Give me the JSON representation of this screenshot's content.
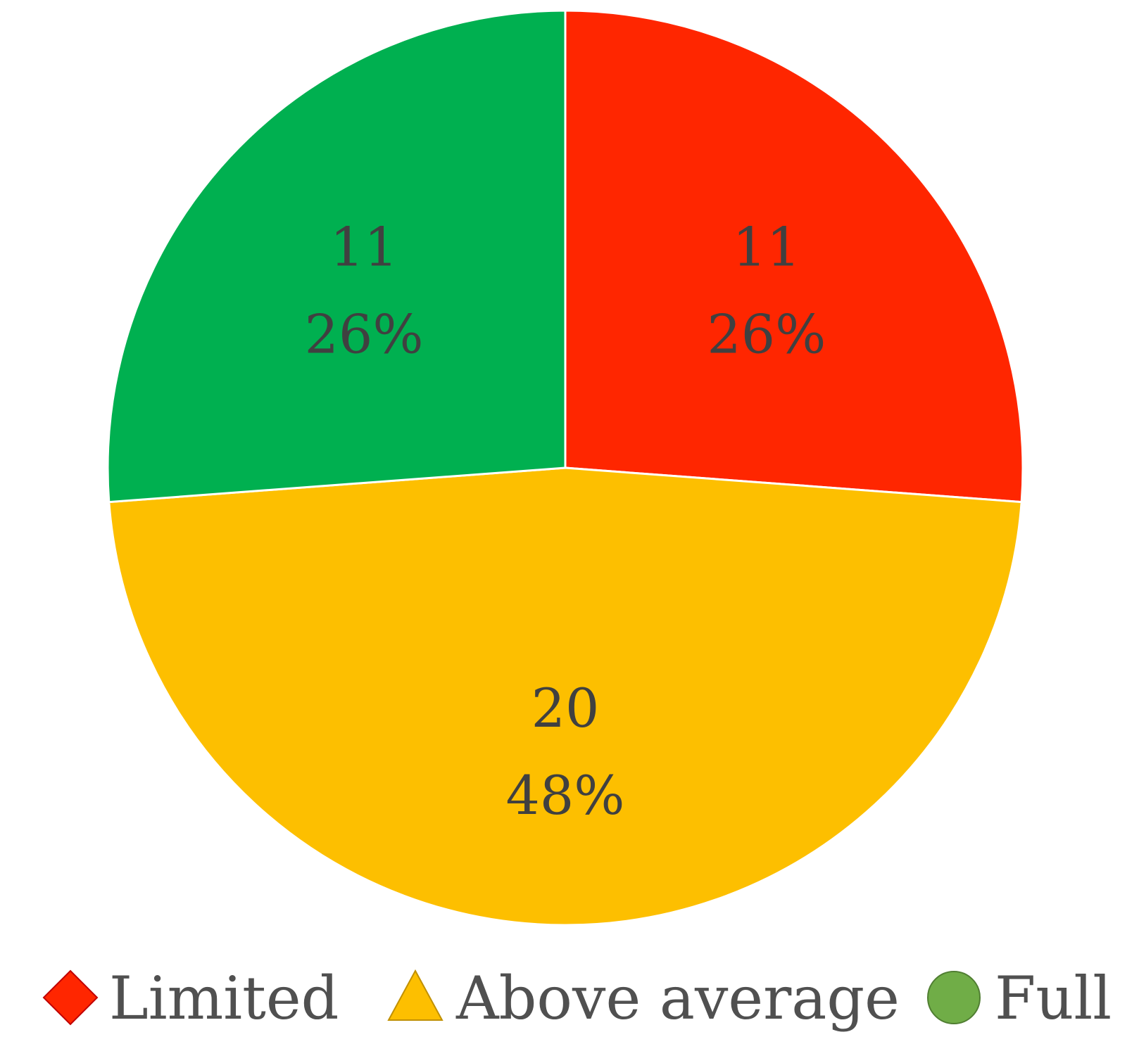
{
  "chart_data": {
    "type": "pie",
    "slices": [
      {
        "label": "Limited",
        "value": 11,
        "percent_label": "26%",
        "color": "#ff2600",
        "marker": "diamond"
      },
      {
        "label": "Above average",
        "value": 20,
        "percent_label": "48%",
        "color": "#fdbf00",
        "marker": "triangle"
      },
      {
        "label": "Full",
        "value": 11,
        "percent_label": "26%",
        "color": "#00b050",
        "marker": "circle"
      }
    ],
    "legend": {
      "placement": "bottom",
      "entries": [
        {
          "label": "Limited",
          "marker": "diamond",
          "color": "#ff2600"
        },
        {
          "label": "Above average",
          "marker": "triangle",
          "color": "#fdbf00"
        },
        {
          "label": "Full",
          "marker": "circle",
          "color": "#70ad47"
        }
      ]
    },
    "start_angle": "12 o'clock",
    "direction": "clockwise",
    "slice_border_color": "#ffffff"
  }
}
